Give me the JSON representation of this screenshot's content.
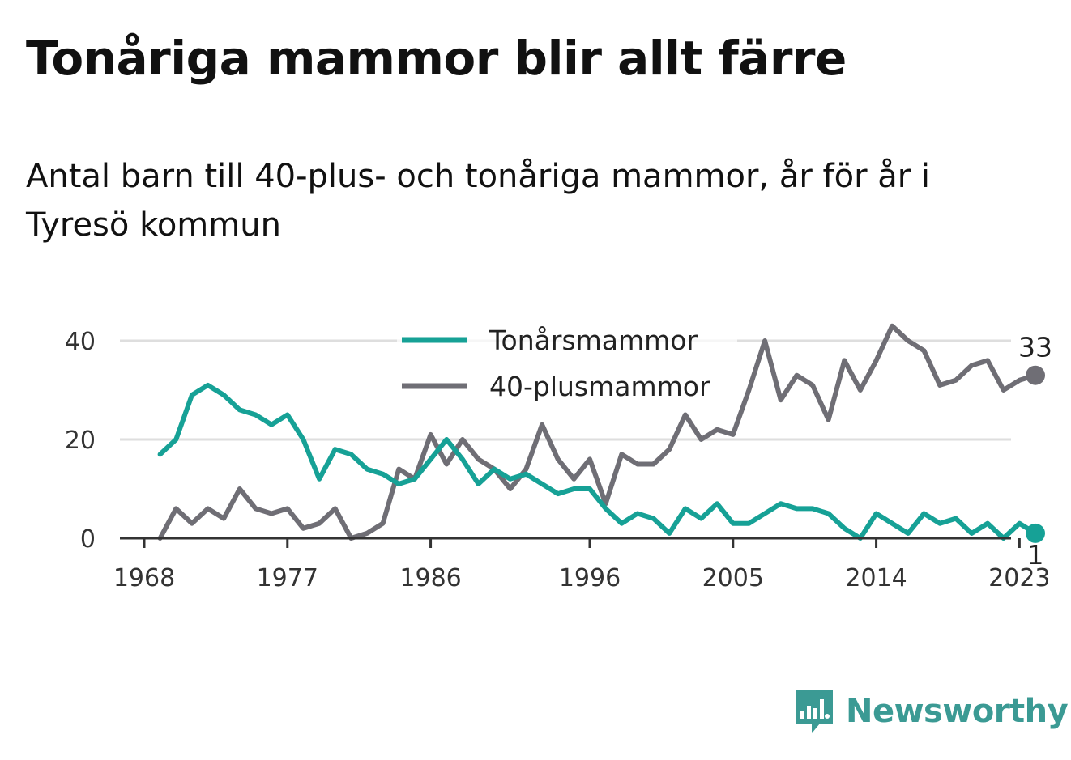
{
  "title": "Tonåriga mammor blir allt färre",
  "subtitle": "Antal barn till 40-plus- och tonåriga mammor, år för år i Tyresö kommun",
  "brand": {
    "name": "Newsworthy",
    "icon": "newsworthy-logo-icon",
    "color": "#3b9a94"
  },
  "chart_data": {
    "type": "line",
    "x_ticks": [
      1968,
      1977,
      1986,
      1996,
      2005,
      2014,
      2023
    ],
    "y_ticks": [
      0,
      20,
      40
    ],
    "ylim": [
      0,
      40
    ],
    "xlim": [
      1968,
      2024
    ],
    "grid": true,
    "legend_position": "top-center",
    "x": [
      1969,
      1970,
      1971,
      1972,
      1973,
      1974,
      1975,
      1976,
      1977,
      1978,
      1979,
      1980,
      1981,
      1982,
      1983,
      1984,
      1985,
      1986,
      1987,
      1988,
      1989,
      1990,
      1991,
      1992,
      1993,
      1994,
      1995,
      1996,
      1997,
      1998,
      1999,
      2000,
      2001,
      2002,
      2003,
      2004,
      2005,
      2006,
      2007,
      2008,
      2009,
      2010,
      2011,
      2012,
      2013,
      2014,
      2015,
      2016,
      2017,
      2018,
      2019,
      2020,
      2021,
      2022,
      2023,
      2024
    ],
    "series": [
      {
        "name": "Tonårsmammor",
        "color": "#16a196",
        "end_label": "1",
        "values": [
          17,
          20,
          29,
          31,
          29,
          26,
          25,
          23,
          25,
          20,
          12,
          18,
          17,
          14,
          13,
          11,
          12,
          16,
          20,
          16,
          11,
          14,
          12,
          13,
          11,
          9,
          10,
          10,
          6,
          3,
          5,
          4,
          1,
          6,
          4,
          7,
          3,
          3,
          5,
          7,
          6,
          6,
          5,
          2,
          0,
          5,
          3,
          1,
          5,
          3,
          4,
          1,
          3,
          0,
          3,
          1
        ]
      },
      {
        "name": "40-plusmammor",
        "color": "#6f6e75",
        "end_label": "33",
        "values": [
          0,
          6,
          3,
          6,
          4,
          10,
          6,
          5,
          6,
          2,
          3,
          6,
          0,
          1,
          3,
          14,
          12,
          21,
          15,
          20,
          16,
          14,
          10,
          14,
          23,
          16,
          12,
          16,
          7,
          17,
          15,
          15,
          18,
          25,
          20,
          22,
          21,
          30,
          40,
          28,
          33,
          31,
          24,
          36,
          30,
          36,
          43,
          40,
          38,
          31,
          32,
          35,
          36,
          30,
          32,
          33
        ]
      }
    ]
  }
}
